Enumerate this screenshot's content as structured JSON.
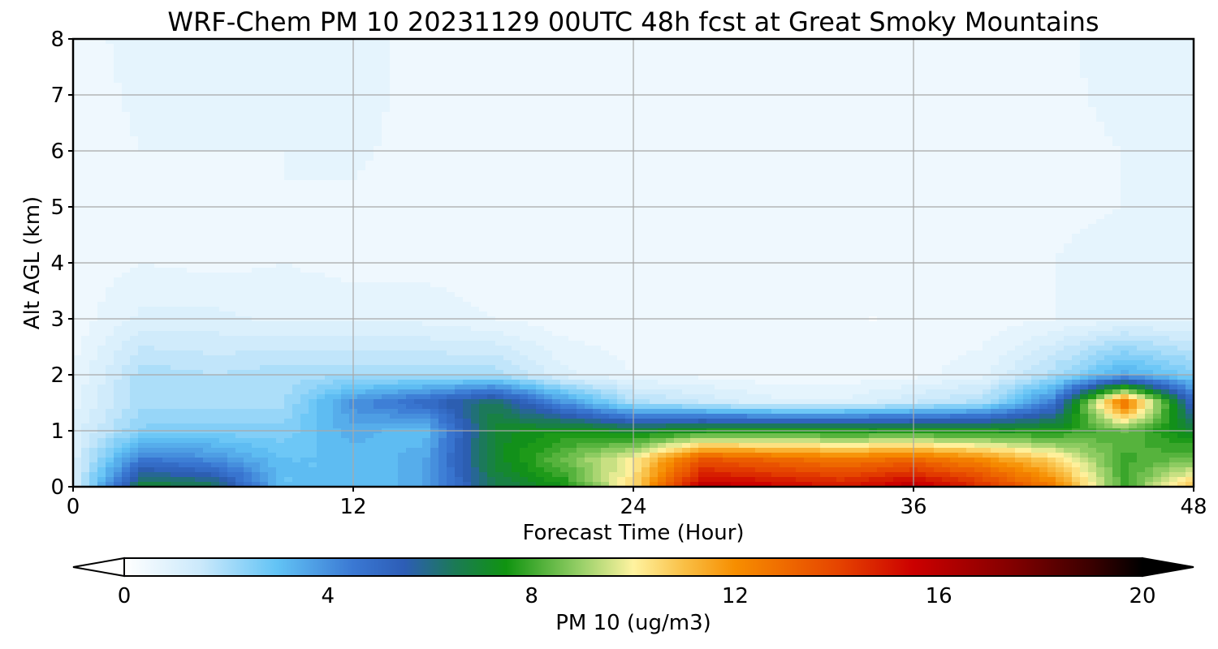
{
  "chart_data": {
    "type": "heatmap",
    "title": "WRF-Chem PM 10  20231129 00UTC 48h fcst at Great Smoky Mountains",
    "xlabel": "Forecast Time (Hour)",
    "ylabel": "Alt AGL (km)",
    "xlim": [
      0,
      48
    ],
    "ylim": [
      0,
      8
    ],
    "x_ticks": [
      "0",
      "12",
      "24",
      "36",
      "48"
    ],
    "y_ticks": [
      "0",
      "1",
      "2",
      "3",
      "4",
      "5",
      "6",
      "7",
      "8"
    ],
    "grid": true,
    "x": [
      0,
      3,
      6,
      9,
      12,
      15,
      18,
      21,
      24,
      27,
      30,
      33,
      36,
      39,
      42,
      45,
      48
    ],
    "y": [
      0,
      0.5,
      1,
      1.5,
      2,
      3,
      4,
      5,
      6,
      7,
      8
    ],
    "z": [
      [
        1.0,
        7.0,
        6.5,
        3.0,
        3.0,
        3.5,
        6.5,
        7.5,
        10.5,
        16.0,
        15.5,
        15.0,
        16.0,
        14.5,
        12.5,
        8.0,
        11.0
      ],
      [
        1.0,
        4.5,
        4.0,
        3.0,
        3.0,
        3.5,
        7.0,
        8.5,
        10.0,
        13.5,
        13.0,
        12.5,
        13.0,
        12.0,
        10.5,
        8.0,
        8.5
      ],
      [
        1.0,
        2.5,
        2.5,
        2.5,
        3.5,
        3.0,
        7.0,
        7.5,
        7.0,
        7.5,
        7.5,
        7.5,
        7.5,
        7.5,
        7.5,
        8.5,
        7.0
      ],
      [
        0.8,
        2.0,
        2.0,
        2.0,
        4.0,
        5.0,
        6.5,
        4.0,
        2.0,
        1.5,
        1.0,
        1.0,
        1.5,
        2.0,
        4.5,
        13.0,
        5.0
      ],
      [
        0.6,
        2.0,
        1.8,
        2.0,
        2.0,
        2.0,
        2.0,
        1.0,
        0.6,
        0.5,
        0.4,
        0.4,
        0.5,
        0.8,
        2.0,
        3.5,
        2.5
      ],
      [
        0.4,
        1.0,
        1.0,
        0.8,
        0.8,
        0.8,
        0.6,
        0.4,
        0.4,
        0.3,
        0.3,
        0.3,
        0.3,
        0.4,
        0.6,
        0.8,
        0.8
      ],
      [
        0.4,
        0.6,
        0.5,
        0.6,
        0.5,
        0.5,
        0.4,
        0.4,
        0.3,
        0.3,
        0.4,
        0.4,
        0.4,
        0.4,
        0.6,
        0.8,
        0.8
      ],
      [
        0.4,
        0.6,
        0.5,
        0.6,
        0.5,
        0.4,
        0.4,
        0.4,
        0.4,
        0.4,
        0.4,
        0.4,
        0.4,
        0.4,
        0.5,
        0.6,
        0.7
      ],
      [
        0.4,
        0.6,
        0.6,
        0.6,
        0.7,
        0.4,
        0.4,
        0.4,
        0.4,
        0.4,
        0.4,
        0.4,
        0.4,
        0.4,
        0.5,
        0.6,
        0.7
      ],
      [
        0.4,
        0.7,
        0.6,
        0.8,
        0.8,
        0.4,
        0.4,
        0.4,
        0.4,
        0.5,
        0.5,
        0.5,
        0.4,
        0.4,
        0.5,
        0.7,
        0.7
      ],
      [
        0.5,
        0.7,
        0.7,
        0.9,
        0.8,
        0.4,
        0.4,
        0.4,
        0.4,
        0.5,
        0.6,
        0.6,
        0.5,
        0.5,
        0.5,
        0.8,
        0.8
      ]
    ],
    "colorbar": {
      "label": "PM 10  (ug/m3)",
      "min": 0,
      "max": 20,
      "ticks": [
        "0",
        "4",
        "8",
        "12",
        "16",
        "20"
      ],
      "extend": "both",
      "stops": [
        {
          "value": 0,
          "color": "#ffffff"
        },
        {
          "value": 1.5,
          "color": "#cbe9fb"
        },
        {
          "value": 3,
          "color": "#62c3f5"
        },
        {
          "value": 4.5,
          "color": "#3a78d3"
        },
        {
          "value": 5.5,
          "color": "#2d5db6"
        },
        {
          "value": 6.5,
          "color": "#1b7a55"
        },
        {
          "value": 7.5,
          "color": "#109410"
        },
        {
          "value": 9,
          "color": "#9bd16a"
        },
        {
          "value": 10,
          "color": "#fff3a0"
        },
        {
          "value": 11,
          "color": "#f9bf45"
        },
        {
          "value": 12,
          "color": "#f78e00"
        },
        {
          "value": 14,
          "color": "#e64500"
        },
        {
          "value": 15.5,
          "color": "#cc0000"
        },
        {
          "value": 17.5,
          "color": "#800000"
        },
        {
          "value": 19,
          "color": "#3a0000"
        },
        {
          "value": 20,
          "color": "#000000"
        }
      ]
    }
  }
}
